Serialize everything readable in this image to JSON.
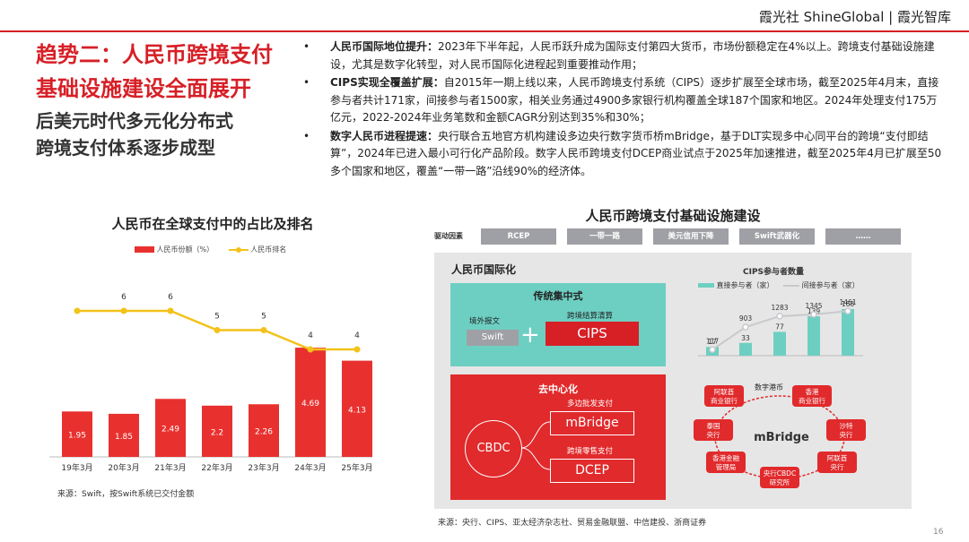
{
  "header": {
    "brand": "霞光社 ShineGlobal | 霞光智库"
  },
  "title": "趋势二：人民币跨境支付\n基础设施建设全面展开",
  "subtitle": "后美元时代多元化分布式\n跨境支付体系逐步成型",
  "bullets": [
    {
      "dot": "•",
      "heading": "人民币国际地位提升：",
      "text": "2023年下半年起，人民币跃升成为国际支付第四大货币，市场份额稳定在4%以上。跨境支付基础设施建设，尤其是数字化转型，对人民币国际化进程起到重要推动作用；"
    },
    {
      "dot": "•",
      "heading": "CIPS实现全覆盖扩展：",
      "text": "自2015年一期上线以来，人民币跨境支付系统（CIPS）逐步扩展至全球市场，截至2025年4月末，直接参与者共计171家，间接参与者1500家，相关业务通过4900多家银行机构覆盖全球187个国家和地区。2024年处理支付175万亿元，2022-2024年业务笔数和金额CAGR分别达到35%和30%；"
    },
    {
      "dot": "•",
      "heading": "数字人民币进程提速：",
      "text": "央行联合五地官方机构建设多边央行数字货币桥mBridge，基于DLT实现多中心同平台的跨境“支付即结算”，2024年已进入最小可行化产品阶段。数字人民币跨境支付DCEP商业试点于2025年加速推进，截至2025年4月已扩展至50多个国家和地区，覆盖“一带一路”沿线90%的经济体。"
    }
  ],
  "chart_data": {
    "type": "bar",
    "title": "人民币在全球支付中的占比及排名",
    "categories": [
      "19年3月",
      "20年3月",
      "21年3月",
      "22年3月",
      "23年3月",
      "24年3月",
      "25年3月"
    ],
    "series": [
      {
        "name": "人民币份额（%）",
        "type": "bar",
        "values": [
          1.95,
          1.85,
          2.49,
          2.2,
          2.26,
          4.69,
          4.13
        ],
        "labels": [
          "1.95",
          "1.85",
          "2.49",
          "2.2",
          "2.26",
          "4.69",
          "4.13"
        ],
        "color": "#e8312f"
      },
      {
        "name": "人民币排名",
        "type": "line",
        "values": [
          6,
          6,
          6,
          5,
          5,
          4,
          4
        ],
        "labels": [
          "",
          "6",
          "6",
          "5",
          "5",
          "4",
          "4"
        ],
        "color": "#f3c21a"
      }
    ],
    "source": "来源：Swift，按Swift系统已交付金额"
  },
  "diagram": {
    "title": "人民币跨境支付基础设施建设",
    "drivers_label": "驱动因素",
    "drivers": [
      "RCEP",
      "一带一路",
      "美元信用下降",
      "Swift武器化",
      "……"
    ],
    "section_label": "人民币国际化",
    "traditional": {
      "title": "传统集中式",
      "swift_header": "境外报文",
      "swift": "Swift",
      "plus": "+",
      "cips_header": "跨境结算清算",
      "cips": "CIPS"
    },
    "decentralized": {
      "title": "去中心化",
      "cbdc": "CBDC",
      "mbridge_header": "多边批发支付",
      "mbridge": "mBridge",
      "dcep_header": "跨境零售支付",
      "dcep": "DCEP"
    },
    "cips_chart": {
      "title": "CIPS参与者数量",
      "legend_direct": "直接参与者（家）",
      "legend_indirect": "间接参与者（家）",
      "direct": [
        17,
        33,
        77,
        139,
        168
      ],
      "indirect": [
        117,
        903,
        1283,
        1345,
        1461
      ],
      "direct_color": "#6dcfc2",
      "indirect_color": "#c8c9cc"
    },
    "mbridge_network": {
      "center": "mBridge",
      "bridge_label": "数字港币",
      "nodes": [
        "阿联酋\n商业银行",
        "香港\n商业银行",
        "泰国\n央行",
        "沙特\n央行",
        "香港金融\n管理局",
        "阿联酋\n央行",
        "央行CBDC\n研究所"
      ]
    },
    "source": "来源：央行、CIPS、亚太经济杂志社、贸易金融联盟、中信建投、浙商证券"
  },
  "page_number": "16"
}
